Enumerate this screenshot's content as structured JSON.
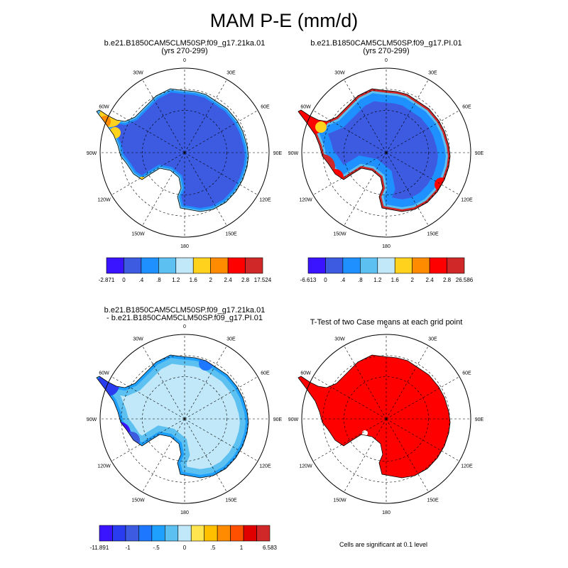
{
  "figure": {
    "title": "MAM P-E (mm/d)",
    "panels": [
      {
        "title_line1": "b.e21.B1850CAM5CLM50SP.f09_g17.21ka.01",
        "title_line2": "(yrs 270-299)"
      },
      {
        "title_line1": "b.e21.B1850CAM5CLM50SP.f09_g17.PI.01",
        "title_line2": "(yrs 270-299)"
      },
      {
        "title_line1": "b.e21.B1850CAM5CLM50SP.f09_g17.21ka.01",
        "title_line2": "- b.e21.B1850CAM5CLM50SP.f09_g17.PI.01"
      },
      {
        "title_line1": "T-Test of two Case means at each grid point",
        "title_line2": ""
      }
    ],
    "longitude_labels": [
      "0",
      "30E",
      "60E",
      "90E",
      "120E",
      "150E",
      "180",
      "150W",
      "120W",
      "90W",
      "60W",
      "30W"
    ],
    "colorbars": [
      {
        "colors": [
          "#3a14ff",
          "#3c5be0",
          "#1e90ff",
          "#5cc0f0",
          "#c0e8f8",
          "#ffd21e",
          "#ff8c00",
          "#ff0000",
          "#d02828"
        ],
        "labels": [
          "-2.871",
          "0",
          ".4",
          ".8",
          "1.2",
          "1.6",
          "2",
          "2.4",
          "2.8",
          "17.524"
        ]
      },
      {
        "colors": [
          "#3a14ff",
          "#3c5be0",
          "#1e90ff",
          "#5cc0f0",
          "#c0e8f8",
          "#ffd21e",
          "#ff8c00",
          "#ff0000",
          "#d02828"
        ],
        "labels": [
          "-6.613",
          "0",
          ".4",
          ".8",
          "1.2",
          "1.6",
          "2",
          "2.4",
          "2.8",
          "26.586"
        ]
      },
      {
        "colors": [
          "#3a14ff",
          "#2a3cf0",
          "#3c5be0",
          "#1e78ff",
          "#1ea0ff",
          "#5cc0f0",
          "#c0e8f8",
          "#ffe650",
          "#ffc000",
          "#ff8c00",
          "#ff5000",
          "#e00000",
          "#d02828"
        ],
        "labels": [
          "-11.891",
          "-1",
          "-.5",
          "0",
          ".5",
          "1",
          "6.583"
        ]
      }
    ],
    "significance_note": "Cells are significant at 0.1 level"
  }
}
